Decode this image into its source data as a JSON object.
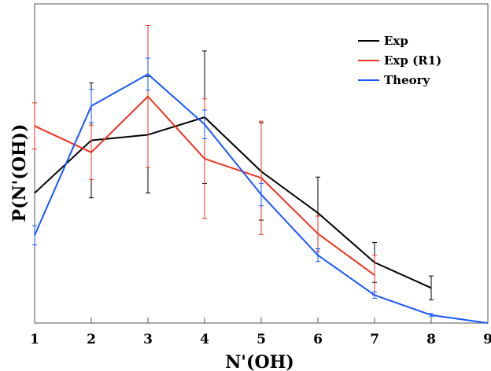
{
  "chart_data": {
    "type": "line",
    "xlabel": "N'(OH)",
    "ylabel": "P(N'(OH))",
    "xlim": [
      1,
      9
    ],
    "x_ticks": [
      1,
      2,
      3,
      4,
      5,
      6,
      7,
      8,
      9
    ],
    "grid": false,
    "legend_position": "top-right",
    "series": [
      {
        "name": "Exp",
        "color": "#000000",
        "x": [
          1,
          2,
          3,
          4,
          5,
          6,
          7,
          8
        ],
        "y": [
          0.163,
          0.229,
          0.236,
          0.258,
          0.19,
          0.138,
          0.076,
          0.044
        ],
        "err": [
          0,
          0.072,
          0.073,
          0.083,
          0.061,
          0.045,
          0.025,
          0.015
        ]
      },
      {
        "name": "Exp (R1)",
        "color": "#ee3322",
        "x": [
          1,
          2,
          3,
          4,
          5,
          6,
          7
        ],
        "y": [
          0.247,
          0.214,
          0.284,
          0.206,
          0.182,
          0.112,
          0.06
        ],
        "err": [
          0.029,
          0.034,
          0.089,
          0.075,
          0.071,
          0.022,
          0.025
        ]
      },
      {
        "name": "Theory",
        "color": "#1a56ff",
        "x": [
          1,
          2,
          3,
          4,
          5,
          6,
          7,
          8,
          9
        ],
        "y": [
          0.11,
          0.272,
          0.312,
          0.249,
          0.161,
          0.085,
          0.035,
          0.01,
          0.0
        ],
        "err": [
          0.012,
          0.021,
          0.02,
          0.018,
          0.014,
          0.008,
          0.004,
          0.002,
          0
        ]
      }
    ]
  }
}
